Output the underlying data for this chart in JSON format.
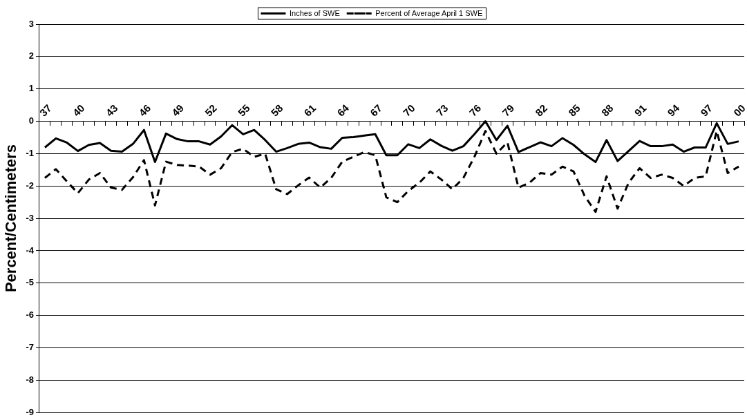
{
  "chart_data": {
    "type": "line",
    "ylabel": "Percent/Centimeters",
    "categories": [
      "37",
      null,
      null,
      "40",
      null,
      null,
      "43",
      null,
      null,
      "46",
      null,
      null,
      "49",
      null,
      null,
      "52",
      null,
      null,
      "55",
      null,
      null,
      "58",
      null,
      null,
      "61",
      null,
      null,
      "64",
      null,
      null,
      "67",
      null,
      null,
      "70",
      null,
      null,
      "73",
      null,
      null,
      "76",
      null,
      null,
      "79",
      null,
      null,
      "82",
      null,
      null,
      "85",
      null,
      null,
      "88",
      null,
      null,
      "91",
      null,
      null,
      "94",
      null,
      null,
      "97",
      null,
      null,
      "00"
    ],
    "series": [
      {
        "name": "Inches of SWE",
        "color": "#000000",
        "line_style": "solid",
        "values": [
          -0.81,
          -0.53,
          -0.66,
          -0.92,
          -0.73,
          -0.67,
          -0.91,
          -0.94,
          -0.7,
          -0.27,
          -1.26,
          -0.38,
          -0.55,
          -0.62,
          -0.62,
          -0.72,
          -0.47,
          -0.12,
          -0.4,
          -0.27,
          -0.58,
          -0.94,
          -0.83,
          -0.7,
          -0.66,
          -0.8,
          -0.85,
          -0.51,
          -0.49,
          -0.44,
          -0.4,
          -1.05,
          -1.05,
          -0.71,
          -0.83,
          -0.56,
          -0.76,
          -0.91,
          -0.77,
          -0.4,
          0,
          -0.58,
          -0.14,
          -0.95,
          -0.8,
          -0.65,
          -0.77,
          -0.52,
          -0.73,
          -1.02,
          -1.26,
          -0.58,
          -1.23,
          -0.92,
          -0.61,
          -0.77,
          -0.77,
          -0.72,
          -0.94,
          -0.81,
          -0.81,
          -0.06,
          -0.7,
          -0.62
        ]
      },
      {
        "name": "Percent of Average April 1 SWE",
        "color": "#000000",
        "line_style": "dashed",
        "values": [
          -1.75,
          -1.48,
          -1.86,
          -2.22,
          -1.8,
          -1.6,
          -2.05,
          -2.12,
          -1.73,
          -1.2,
          -2.6,
          -1.25,
          -1.35,
          -1.37,
          -1.4,
          -1.65,
          -1.45,
          -0.95,
          -0.85,
          -1.1,
          -1.0,
          -2.1,
          -2.25,
          -1.98,
          -1.74,
          -2.05,
          -1.75,
          -1.25,
          -1.1,
          -0.95,
          -1.05,
          -2.35,
          -2.5,
          -2.15,
          -1.9,
          -1.55,
          -1.8,
          -2.1,
          -1.75,
          -1.1,
          -0.3,
          -1.0,
          -0.65,
          -2.05,
          -1.9,
          -1.6,
          -1.65,
          -1.4,
          -1.55,
          -2.3,
          -2.8,
          -1.7,
          -2.7,
          -1.9,
          -1.45,
          -1.75,
          -1.65,
          -1.75,
          -2.0,
          -1.75,
          -1.7,
          -0.3,
          -1.6,
          -1.4
        ]
      }
    ],
    "ylim": [
      -9,
      3
    ],
    "yticks": [
      -9,
      -8,
      -7,
      -6,
      -5,
      -4,
      -3,
      -2,
      -1,
      0,
      1,
      2,
      3
    ],
    "grid": "y",
    "legend": "top",
    "marker": "none"
  }
}
